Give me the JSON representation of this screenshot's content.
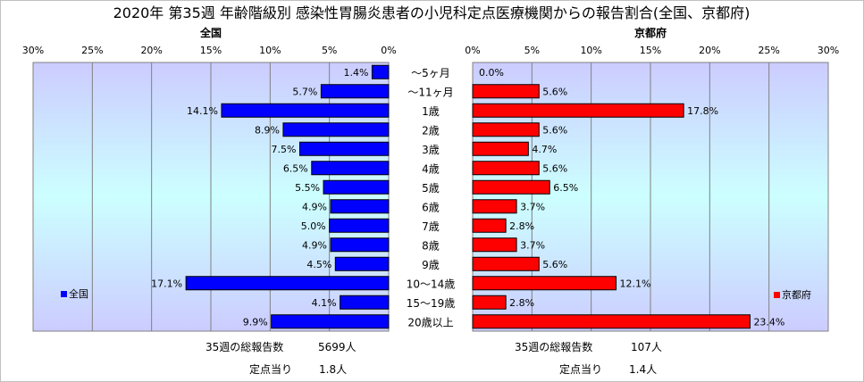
{
  "title": "2020年 第35週 年齢階級別 感染性胃腸炎患者の小児科定点医療機関からの報告割合(全国、京都府)",
  "colors": {
    "national": "#0000ff",
    "kyoto": "#ff0000",
    "plot_top": "#ccccff",
    "plot_mid": "#ccffff"
  },
  "chart_data": {
    "type": "bar",
    "categories": [
      "～5ヶ月",
      "～11ヶ月",
      "1歳",
      "2歳",
      "3歳",
      "4歳",
      "5歳",
      "6歳",
      "7歳",
      "8歳",
      "9歳",
      "10～14歳",
      "15～19歳",
      "20歳以上"
    ],
    "xlim": [
      0,
      30
    ],
    "ticks": [
      0,
      5,
      10,
      15,
      20,
      25,
      30
    ],
    "tick_suffix": "%",
    "series": [
      {
        "name": "全国",
        "values": [
          1.4,
          5.7,
          14.1,
          8.9,
          7.5,
          6.5,
          5.5,
          4.9,
          5.0,
          4.9,
          4.5,
          17.1,
          4.1,
          9.9
        ],
        "legend": "全国"
      },
      {
        "name": "京都府",
        "values": [
          0.0,
          5.6,
          17.8,
          5.6,
          4.7,
          5.6,
          6.5,
          3.7,
          2.8,
          3.7,
          5.6,
          12.1,
          2.8,
          23.4
        ],
        "legend": "京都府"
      }
    ]
  },
  "footer": {
    "national": {
      "total_label": "35週の総報告数",
      "total_value": "5699人",
      "per_label": "定点当り",
      "per_value": "1.8人"
    },
    "kyoto": {
      "total_label": "35週の総報告数",
      "total_value": "107人",
      "per_label": "定点当り",
      "per_value": "1.4人"
    }
  }
}
